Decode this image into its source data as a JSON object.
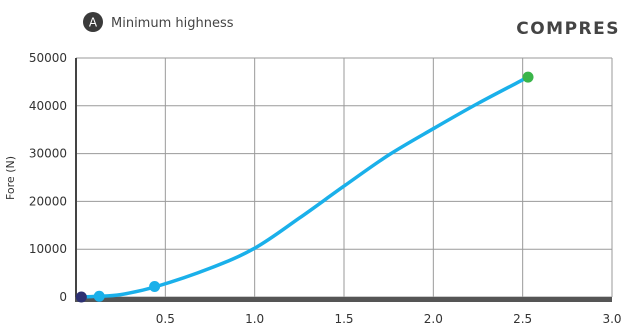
{
  "chart_data": {
    "type": "line",
    "title": "COMPRES",
    "legend_marker": "A",
    "legend_label": "Minimum highness",
    "xlabel": "",
    "ylabel": "Fore (N)",
    "xlim": [
      0,
      3.0
    ],
    "ylim": [
      0,
      50000
    ],
    "x_ticks": [
      0.5,
      1.0,
      1.5,
      2.0,
      2.5,
      3.0
    ],
    "x_tick_labels": [
      "0.5",
      "1.0",
      "1.5",
      "2.0",
      "2.5",
      "3.0"
    ],
    "y_ticks": [
      0,
      10000,
      20000,
      30000,
      40000,
      50000
    ],
    "y_tick_labels": [
      "0",
      "10000",
      "20000",
      "30000",
      "40000",
      "50000"
    ],
    "grid": true,
    "line_color": "#1ab0ea",
    "curve": {
      "x": [
        0.03,
        0.12,
        0.25,
        0.45,
        0.75,
        1.0,
        1.25,
        1.5,
        1.75,
        2.0,
        2.25,
        2.53
      ],
      "y": [
        0,
        150,
        500,
        2200,
        6000,
        10200,
        16500,
        23200,
        29700,
        35200,
        40500,
        46000
      ]
    },
    "points": [
      {
        "x": 0.03,
        "y": 0,
        "color": "#2d3072"
      },
      {
        "x": 0.13,
        "y": 150,
        "color": "#1ab0ea"
      },
      {
        "x": 0.44,
        "y": 2200,
        "color": "#1ab0ea"
      },
      {
        "x": 2.53,
        "y": 46000,
        "color": "#3ab54a"
      }
    ]
  }
}
